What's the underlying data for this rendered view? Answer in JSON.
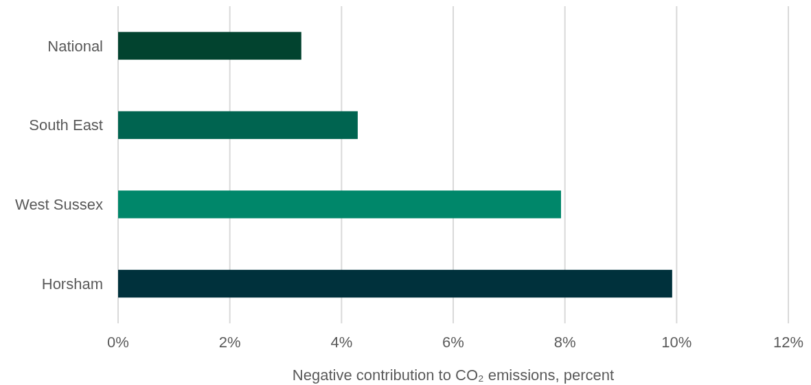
{
  "chart_data": {
    "type": "bar",
    "orientation": "horizontal",
    "xlabel": "Negative contribution to CO₂ emissions, percent",
    "categories": [
      "National",
      "South East",
      "West Sussex",
      "Horsham"
    ],
    "values": [
      3.28,
      4.29,
      7.93,
      9.92
    ],
    "colors": [
      "#02432f",
      "#006450",
      "#00876a",
      "#00313c"
    ],
    "xlim": [
      0,
      12
    ],
    "xticks": [
      {
        "value": 0,
        "label": "0%"
      },
      {
        "value": 2,
        "label": "2%"
      },
      {
        "value": 4,
        "label": "4%"
      },
      {
        "value": 6,
        "label": "6%"
      },
      {
        "value": 8,
        "label": "8%"
      },
      {
        "value": 10,
        "label": "10%"
      },
      {
        "value": 12,
        "label": "12%"
      }
    ],
    "grid": "x"
  }
}
